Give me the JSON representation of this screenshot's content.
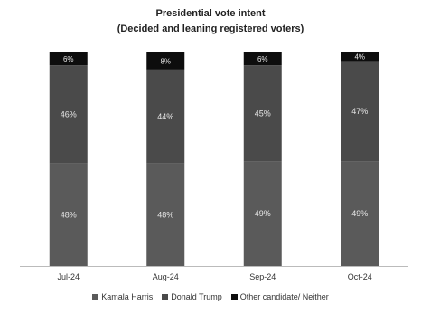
{
  "chart_data": {
    "type": "bar",
    "stacked": true,
    "title": "Presidential vote intent",
    "subtitle": "(Decided and leaning registered voters)",
    "categories": [
      "Jul-24",
      "Aug-24",
      "Sep-24",
      "Oct-24"
    ],
    "series": [
      {
        "name": "Kamala Harris",
        "values": [
          48,
          48,
          49,
          49
        ],
        "labels": [
          "48%",
          "48%",
          "49%",
          "49%"
        ],
        "color": "#5a5a5a"
      },
      {
        "name": "Donald Trump",
        "values": [
          46,
          44,
          45,
          47
        ],
        "labels": [
          "46%",
          "44%",
          "45%",
          "47%"
        ],
        "color": "#4a4a4a"
      },
      {
        "name": "Other candidate/ Neither",
        "values": [
          6,
          8,
          6,
          4
        ],
        "labels": [
          "6%",
          "8%",
          "6%",
          "4%"
        ],
        "color": "#0d0d0d"
      }
    ],
    "ylim": [
      0,
      100
    ],
    "grid": false,
    "legend_position": "bottom"
  }
}
